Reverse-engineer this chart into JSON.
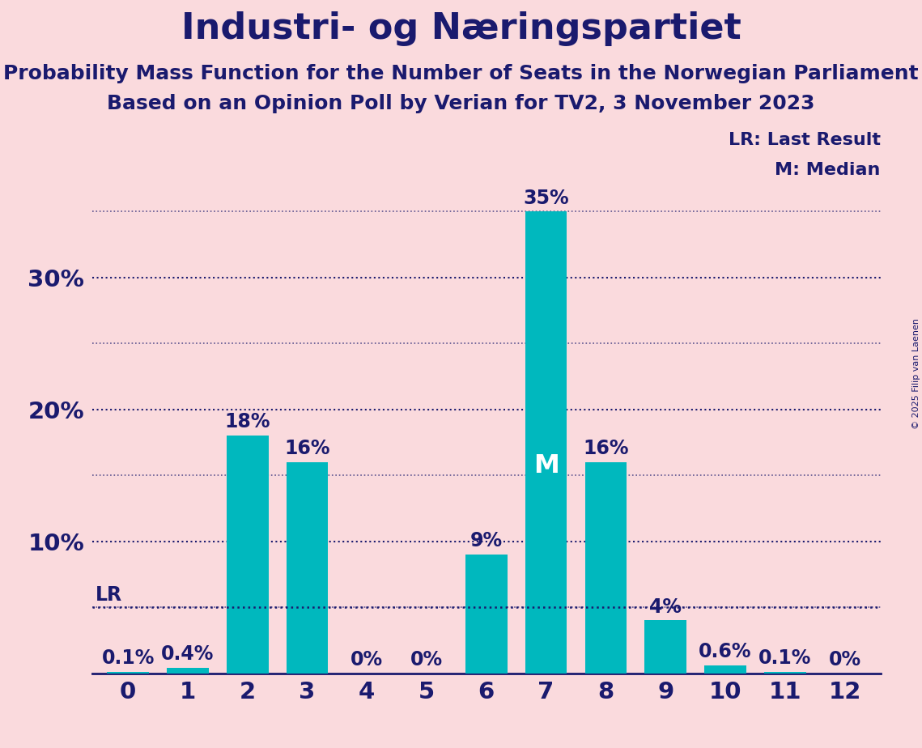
{
  "title": "Industri- og Næringspartiet",
  "subtitle1": "Probability Mass Function for the Number of Seats in the Norwegian Parliament",
  "subtitle2": "Based on an Opinion Poll by Verian for TV2, 3 November 2023",
  "copyright": "© 2025 Filip van Laenen",
  "categories": [
    0,
    1,
    2,
    3,
    4,
    5,
    6,
    7,
    8,
    9,
    10,
    11,
    12
  ],
  "values": [
    0.1,
    0.4,
    18,
    16,
    0,
    0,
    9,
    35,
    16,
    4,
    0.6,
    0.1,
    0
  ],
  "labels": [
    "0.1%",
    "0.4%",
    "18%",
    "16%",
    "0%",
    "0%",
    "9%",
    "35%",
    "16%",
    "4%",
    "0.6%",
    "0.1%",
    "0%"
  ],
  "bar_color": "#00B8BE",
  "background_color": "#FADADD",
  "text_color": "#1a1a6e",
  "title_fontsize": 32,
  "subtitle_fontsize": 18,
  "label_fontsize": 17,
  "tick_fontsize": 21,
  "ytick_labels": [
    "",
    "10%",
    "20%",
    "30%"
  ],
  "ytick_values": [
    0,
    10,
    20,
    30
  ],
  "ylim": [
    0,
    38
  ],
  "grid_color": "#1a1a6e",
  "lr_value": 5.0,
  "median_idx": 7,
  "legend_lr": "LR: Last Result",
  "legend_m": "M: Median",
  "median_label": "M",
  "lr_label": "LR"
}
